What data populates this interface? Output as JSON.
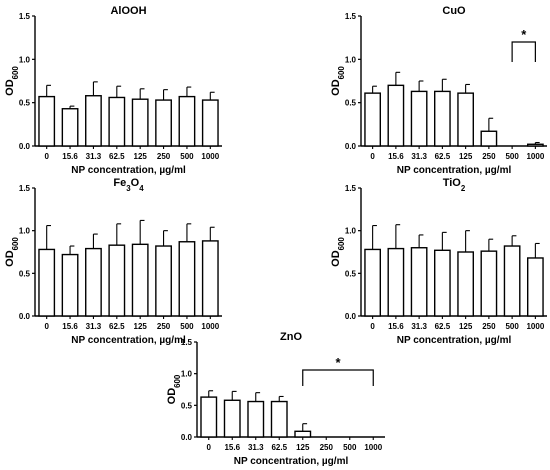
{
  "chart_data": [
    {
      "type": "bar",
      "title": "AlOOH",
      "ylabel": "OD600",
      "xlabel": "NP concentration, µg/ml",
      "categories": [
        "0",
        "15.6",
        "31.3",
        "62.5",
        "125",
        "250",
        "500",
        "1000"
      ],
      "values": [
        0.57,
        0.43,
        0.58,
        0.56,
        0.54,
        0.53,
        0.57,
        0.53
      ],
      "errors": [
        0.13,
        0.03,
        0.16,
        0.13,
        0.12,
        0.12,
        0.11,
        0.09
      ],
      "ylim": [
        0,
        1.5
      ],
      "yticks": [
        "0.0",
        "0.5",
        "1.0",
        "1.5"
      ]
    },
    {
      "type": "bar",
      "title": "CuO",
      "ylabel": "OD600",
      "xlabel": "NP concentration, µg/ml",
      "categories": [
        "0",
        "15.6",
        "31.3",
        "62.5",
        "125",
        "250",
        "500",
        "1000"
      ],
      "values": [
        0.61,
        0.7,
        0.63,
        0.63,
        0.61,
        0.17,
        0.0,
        0.02
      ],
      "errors": [
        0.08,
        0.15,
        0.12,
        0.14,
        0.1,
        0.15,
        0.0,
        0.02
      ],
      "ylim": [
        0,
        1.5
      ],
      "yticks": [
        "0.0",
        "0.5",
        "1.0",
        "1.5"
      ],
      "significance": {
        "from": "500",
        "to": "1000",
        "label": "*"
      }
    },
    {
      "type": "bar",
      "title": "Fe3O4",
      "ylabel": "OD600",
      "xlabel": "NP concentration, µg/ml",
      "categories": [
        "0",
        "15.6",
        "31.3",
        "62.5",
        "125",
        "250",
        "500",
        "1000"
      ],
      "values": [
        0.78,
        0.72,
        0.79,
        0.83,
        0.84,
        0.82,
        0.87,
        0.88
      ],
      "errors": [
        0.28,
        0.1,
        0.17,
        0.25,
        0.28,
        0.18,
        0.21,
        0.16
      ],
      "ylim": [
        0,
        1.5
      ],
      "yticks": [
        "0.0",
        "0.5",
        "1.0",
        "1.5"
      ]
    },
    {
      "type": "bar",
      "title": "TiO2",
      "ylabel": "OD600",
      "xlabel": "NP concentration, µg/ml",
      "categories": [
        "0",
        "15.6",
        "31.3",
        "62.5",
        "125",
        "250",
        "500",
        "1000"
      ],
      "values": [
        0.78,
        0.79,
        0.8,
        0.77,
        0.75,
        0.76,
        0.82,
        0.68
      ],
      "errors": [
        0.28,
        0.28,
        0.15,
        0.21,
        0.25,
        0.14,
        0.12,
        0.17
      ],
      "ylim": [
        0,
        1.5
      ],
      "yticks": [
        "0.0",
        "0.5",
        "1.0",
        "1.5"
      ]
    },
    {
      "type": "bar",
      "title": "ZnO",
      "ylabel": "OD600",
      "xlabel": "NP concentration, µg/ml",
      "categories": [
        "0",
        "15.6",
        "31.3",
        "62.5",
        "125",
        "250",
        "500",
        "1000"
      ],
      "values": [
        0.63,
        0.58,
        0.56,
        0.56,
        0.09,
        0.0,
        0.0,
        0.0
      ],
      "errors": [
        0.1,
        0.14,
        0.14,
        0.08,
        0.12,
        0.0,
        0.0,
        0.0
      ],
      "ylim": [
        0,
        1.5
      ],
      "yticks": [
        "0.0",
        "0.5",
        "1.0",
        "1.5"
      ],
      "significance": {
        "from": "125",
        "to": "1000",
        "label": "*"
      }
    }
  ]
}
